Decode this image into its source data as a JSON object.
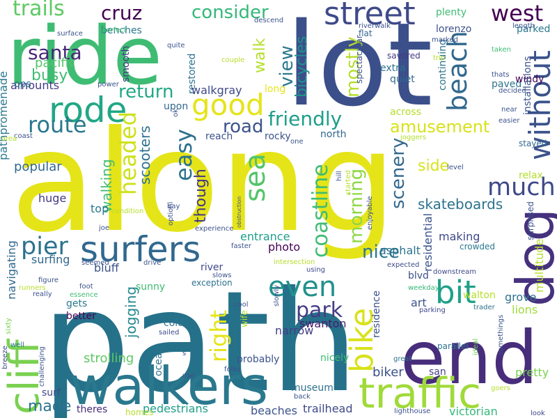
{
  "palette": {
    "background": "#ffffff",
    "dark-purple": "#440154",
    "indigo": "#3b528b",
    "blue-teal": "#31688e",
    "teal": "#21918c",
    "green": "#35b779",
    "light-green": "#6ece58",
    "lime": "#b5de2b",
    "yellow": "#e5e419"
  },
  "words": [
    {
      "text": "along",
      "color": "#e5e419"
    },
    {
      "text": "path",
      "color": "#26718a"
    },
    {
      "text": "lot",
      "color": "#3b4f8a"
    },
    {
      "text": "ride",
      "color": "#3fbc73"
    },
    {
      "text": "end",
      "color": "#472d7b"
    },
    {
      "text": "walkers",
      "color": "#2a788e"
    },
    {
      "text": "dog",
      "color": "#46317e"
    },
    {
      "text": "traffic",
      "color": "#a0da39"
    },
    {
      "text": "cliff",
      "color": "#7ad151"
    },
    {
      "text": "surfers",
      "color": "#31688e"
    },
    {
      "text": "rode",
      "color": "#22a785"
    },
    {
      "text": "street",
      "color": "#3e4a89"
    },
    {
      "text": "bit",
      "color": "#1fa088"
    },
    {
      "text": "bike",
      "color": "#d8e219"
    },
    {
      "text": "good",
      "color": "#e5e419"
    },
    {
      "text": "without",
      "color": "#3b528b"
    },
    {
      "text": "even",
      "color": "#21918c"
    },
    {
      "text": "much",
      "color": "#3e4989"
    },
    {
      "text": "beach",
      "color": "#31688e"
    },
    {
      "text": "west",
      "color": "#440154"
    },
    {
      "text": "sea",
      "color": "#52c569"
    },
    {
      "text": "pier",
      "color": "#2c728e"
    },
    {
      "text": "route",
      "color": "#2a788e"
    },
    {
      "text": "trails",
      "color": "#5ec962"
    },
    {
      "text": "consider",
      "color": "#35b779"
    },
    {
      "text": "santa",
      "color": "#482878"
    },
    {
      "text": "cruz",
      "color": "#440154"
    },
    {
      "text": "coastline",
      "color": "#3fbc73"
    },
    {
      "text": "headed",
      "color": "#cde11d"
    },
    {
      "text": "easy",
      "color": "#2c728e"
    },
    {
      "text": "friendly",
      "color": "#1f9e89"
    },
    {
      "text": "road",
      "color": "#3b528b"
    },
    {
      "text": "right",
      "color": "#e5e419"
    },
    {
      "text": "park",
      "color": "#433e85"
    },
    {
      "text": "morning",
      "color": "#8fd744"
    },
    {
      "text": "scenery",
      "color": "#31688e"
    },
    {
      "text": "return",
      "color": "#22a785"
    },
    {
      "text": "amusement",
      "color": "#d8e219"
    },
    {
      "text": "skateboards",
      "color": "#2c728e"
    },
    {
      "text": "made",
      "color": "#2c728e"
    },
    {
      "text": "mostly",
      "color": "#b5de2b"
    },
    {
      "text": "view",
      "color": "#2a788e"
    },
    {
      "text": "walk",
      "color": "#b5de2b"
    },
    {
      "text": "nice",
      "color": "#2a788e"
    },
    {
      "text": "though",
      "color": "#443983"
    },
    {
      "text": "bicycles",
      "color": "#21918c"
    },
    {
      "text": "busy",
      "color": "#3fbc73"
    },
    {
      "text": "pacific",
      "color": "#52c569"
    },
    {
      "text": "amounts",
      "color": "#443983"
    },
    {
      "text": "side",
      "color": "#d8e219"
    },
    {
      "text": "jogging",
      "color": "#23898e"
    },
    {
      "text": "walking",
      "color": "#3fbc73"
    },
    {
      "text": "scooters",
      "color": "#2c728e"
    },
    {
      "text": "popular",
      "color": "#31688e"
    },
    {
      "text": "strolling",
      "color": "#5ec962"
    },
    {
      "text": "biker",
      "color": "#3b528b"
    },
    {
      "text": "pedestrians",
      "color": "#1f9e89"
    },
    {
      "text": "trailhead",
      "color": "#3e4a89"
    },
    {
      "text": "beaches",
      "color": "#3b528b"
    },
    {
      "text": "victorian",
      "color": "#35b779"
    },
    {
      "text": "pretty",
      "color": "#7ad151"
    },
    {
      "text": "lions",
      "color": "#a0da39"
    },
    {
      "text": "grove",
      "color": "#2c728e"
    },
    {
      "text": "multitude",
      "color": "#b5de2b"
    },
    {
      "text": "swanton",
      "color": "#481a6c"
    },
    {
      "text": "narrow",
      "color": "#433e85"
    },
    {
      "text": "photo",
      "color": "#440154"
    },
    {
      "text": "entrance",
      "color": "#1f9e89"
    },
    {
      "text": "asphalt",
      "color": "#2c728e"
    },
    {
      "text": "art",
      "color": "#3b528b"
    },
    {
      "text": "making",
      "color": "#3e4989"
    },
    {
      "text": "residential",
      "color": "#3b528b"
    },
    {
      "text": "huge",
      "color": "#443983"
    },
    {
      "text": "top",
      "color": "#2a788e"
    },
    {
      "text": "bluff",
      "color": "#3b528b"
    },
    {
      "text": "surfing",
      "color": "#31688e"
    },
    {
      "text": "navigating",
      "color": "#31688e"
    },
    {
      "text": "pathpromenade",
      "color": "#2a788e"
    },
    {
      "text": "ops",
      "color": "#2c728e"
    },
    {
      "text": "smooth",
      "color": "#443983"
    },
    {
      "text": "benches",
      "color": "#2a788e"
    },
    {
      "text": "restored",
      "color": "#2c728e"
    },
    {
      "text": "upon",
      "color": "#31688e"
    },
    {
      "text": "walkgray",
      "color": "#3e4989"
    },
    {
      "text": "long",
      "color": "#e5e419"
    },
    {
      "text": "reach",
      "color": "#3b528b"
    },
    {
      "text": "rocky",
      "color": "#3b528b"
    },
    {
      "text": "north",
      "color": "#31688e"
    },
    {
      "text": "across",
      "color": "#b5de2b"
    },
    {
      "text": "continuing",
      "color": "#2c728e"
    },
    {
      "text": "paved",
      "color": "#2c728e"
    },
    {
      "text": "windy",
      "color": "#440154"
    },
    {
      "text": "extra",
      "color": "#2c728e"
    },
    {
      "text": "quiet",
      "color": "#31688e"
    },
    {
      "text": "spectacular",
      "color": "#3b528b"
    },
    {
      "text": "lorenzo",
      "color": "#3b528b"
    },
    {
      "text": "plenty",
      "color": "#3fbc73"
    },
    {
      "text": "parked",
      "color": "#2a788e"
    },
    {
      "text": "flat",
      "color": "#31688e"
    },
    {
      "text": "savored",
      "color": "#443983"
    },
    {
      "text": "relax",
      "color": "#b5de2b"
    },
    {
      "text": "installations",
      "color": "#3b528b"
    },
    {
      "text": "stayed",
      "color": "#31688e"
    },
    {
      "text": "surprised",
      "color": "#3b528b"
    },
    {
      "text": "crowded",
      "color": "#2a788e"
    },
    {
      "text": "blvd",
      "color": "#3b528b"
    },
    {
      "text": "residence",
      "color": "#3b528b"
    },
    {
      "text": "walton",
      "color": "#b5de2b"
    },
    {
      "text": "better",
      "color": "#440154"
    },
    {
      "text": "gets",
      "color": "#2a788e"
    },
    {
      "text": "sunny",
      "color": "#3fbc73"
    },
    {
      "text": "cold",
      "color": "#2c728e"
    },
    {
      "text": "wife",
      "color": "#b5de2b"
    },
    {
      "text": "nicely",
      "color": "#3fbc73"
    },
    {
      "text": "probably",
      "color": "#3b528b"
    },
    {
      "text": "ocean",
      "color": "#2c728e"
    },
    {
      "text": "museum",
      "color": "#2c728e"
    },
    {
      "text": "homes",
      "color": "#b5de2b"
    },
    {
      "text": "theres",
      "color": "#472d7b"
    },
    {
      "text": "surf",
      "color": "#3e4989"
    },
    {
      "text": "san",
      "color": "#433e85"
    },
    {
      "text": "river",
      "color": "#3e4989"
    },
    {
      "text": "exception",
      "color": "#2c728e"
    },
    {
      "text": "slows",
      "color": "#3b528b"
    },
    {
      "text": "folks",
      "color": "#3b528b"
    },
    {
      "text": "using",
      "color": "#3e4989"
    },
    {
      "text": "expected",
      "color": "#3e4989"
    },
    {
      "text": "downstream",
      "color": "#3e4989"
    },
    {
      "text": "trader",
      "color": "#2c728e"
    },
    {
      "text": "weekday",
      "color": "#35b779"
    },
    {
      "text": "parking",
      "color": "#3e4989"
    },
    {
      "text": "parallel",
      "color": "#2c728e"
    },
    {
      "text": "great",
      "color": "#2c728e"
    },
    {
      "text": "back",
      "color": "#3b528b"
    },
    {
      "text": "lighthouse",
      "color": "#3b528b"
    },
    {
      "text": "look",
      "color": "#3e4989"
    },
    {
      "text": "ideal",
      "color": "#6ece58"
    },
    {
      "text": "somethings",
      "color": "#3b528b"
    },
    {
      "text": "goers",
      "color": "#b5de2b"
    },
    {
      "text": "sailed",
      "color": "#3e4989"
    },
    {
      "text": "cool",
      "color": "#3b528b"
    },
    {
      "text": "slowly",
      "color": "#3b528b"
    },
    {
      "text": "use",
      "color": "#3b528b"
    },
    {
      "text": "s",
      "color": "#3b528b"
    },
    {
      "text": "foot",
      "color": "#3b528b"
    },
    {
      "text": "essence",
      "color": "#3fbc73"
    },
    {
      "text": "figure",
      "color": "#3b528b"
    },
    {
      "text": "runners",
      "color": "#b5de2b"
    },
    {
      "text": "really",
      "color": "#3b528b"
    },
    {
      "text": "sixty",
      "color": "#7ad151"
    },
    {
      "text": "well",
      "color": "#2c728e"
    },
    {
      "text": "breeze",
      "color": "#3e4989"
    },
    {
      "text": "challenging",
      "color": "#3b528b"
    },
    {
      "text": "seemed",
      "color": "#3b528b"
    },
    {
      "text": "drive",
      "color": "#3b528b"
    },
    {
      "text": "faster",
      "color": "#3b528b"
    },
    {
      "text": "experience",
      "color": "#3b528b"
    },
    {
      "text": "intersection",
      "color": "#b5de2b"
    },
    {
      "text": "joe",
      "color": "#3b528b"
    },
    {
      "text": "optioni",
      "color": "#3b528b"
    },
    {
      "text": "condition",
      "color": "#b5de2b"
    },
    {
      "text": "bay",
      "color": "#3b528b"
    },
    {
      "text": "obstruction",
      "color": "#3b528b"
    },
    {
      "text": "enjoyable",
      "color": "#3b528b"
    },
    {
      "text": "started",
      "color": "#b5de2b"
    },
    {
      "text": "hill",
      "color": "#3b528b"
    },
    {
      "text": "level",
      "color": "#3b528b"
    },
    {
      "text": "joggers",
      "color": "#b5de2b"
    },
    {
      "text": "one",
      "color": "#3b528b"
    },
    {
      "text": "coast",
      "color": "#3b528b"
    },
    {
      "text": "area",
      "color": "#b5de2b"
    },
    {
      "text": "ok",
      "color": "#3b528b"
    },
    {
      "text": "near",
      "color": "#3b528b"
    },
    {
      "text": "easier",
      "color": "#3b528b"
    },
    {
      "text": "decided",
      "color": "#3b528b"
    },
    {
      "text": "thats",
      "color": "#3b528b"
    },
    {
      "text": "taken",
      "color": "#3fbc73"
    },
    {
      "text": "length",
      "color": "#3b528b"
    },
    {
      "text": "marked",
      "color": "#3b528b"
    },
    {
      "text": "trip",
      "color": "#b5de2b"
    },
    {
      "text": "riverwalk",
      "color": "#3b528b"
    },
    {
      "text": "descend",
      "color": "#3b528b"
    },
    {
      "text": "couple",
      "color": "#b5de2b"
    },
    {
      "text": "power",
      "color": "#3b528b"
    },
    {
      "text": "quite",
      "color": "#3b528b"
    },
    {
      "text": "perfect",
      "color": "#3fbc73"
    },
    {
      "text": "surface",
      "color": "#3b528b"
    }
  ]
}
